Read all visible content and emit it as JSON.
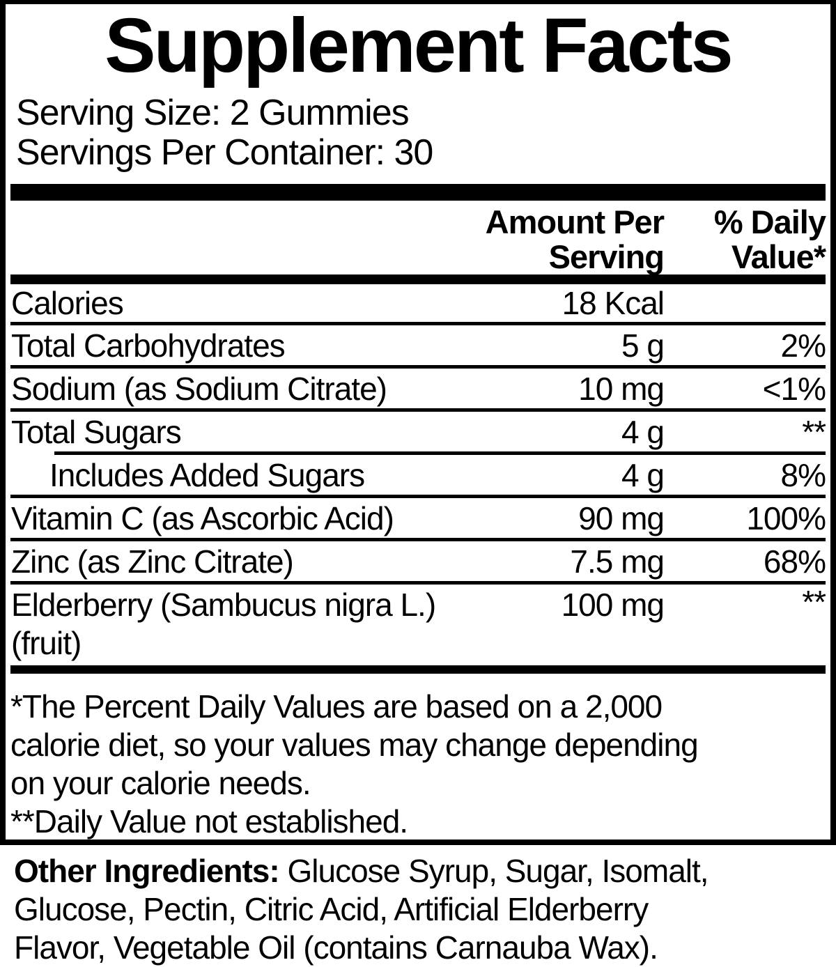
{
  "title": "Supplement Facts",
  "serving_info": {
    "size": "Serving Size: 2 Gummies",
    "per_container": "Servings Per Container: 30"
  },
  "table_header": {
    "amount_line1": "Amount Per",
    "amount_line2": "Serving",
    "dv_line1": "% Daily",
    "dv_line2": "Value*"
  },
  "rows": [
    {
      "label": "Calories",
      "amount": "18 Kcal",
      "dv": ""
    },
    {
      "label": "Total Carbohydrates",
      "amount": "5 g",
      "dv": "2%"
    },
    {
      "label": "Sodium (as Sodium Citrate)",
      "amount": "10 mg",
      "dv": "<1%"
    },
    {
      "label": "Total Sugars",
      "amount": "4 g",
      "dv": "**"
    },
    {
      "label": "Includes Added Sugars",
      "amount": "4 g",
      "dv": "8%"
    },
    {
      "label": "Vitamin C (as Ascorbic Acid)",
      "amount": "90 mg",
      "dv": "100%"
    },
    {
      "label": "Zinc (as Zinc Citrate)",
      "amount": "7.5 mg",
      "dv": "68%"
    },
    {
      "label": "Elderberry (Sambucus nigra L.)",
      "label_line2": "(fruit)",
      "amount": "100 mg",
      "dv": "**"
    }
  ],
  "footnote": {
    "lines": [
      "*The Percent Daily Values are based on a 2,000",
      "calorie diet, so your values may change depending",
      "on your calorie needs.",
      "**Daily Value not established."
    ]
  },
  "other_ingredients": {
    "label": "Other Ingredients:",
    "rest_line1": " Glucose Syrup, Sugar, Isomalt,",
    "line2": "Glucose, Pectin, Citric Acid, Artificial Elderberry",
    "line3": "Flavor, Vegetable Oil (contains Carnauba Wax)."
  },
  "colors": {
    "ink": "#000000",
    "background": "#ffffff"
  }
}
